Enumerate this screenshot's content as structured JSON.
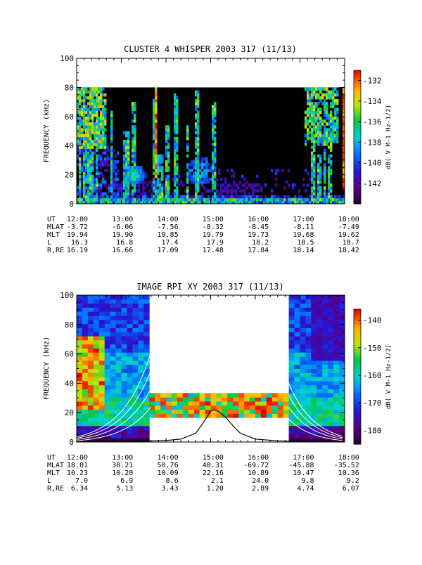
{
  "chart_data": [
    {
      "type": "heatmap",
      "title": "CLUSTER 4 WHISPER 2003 317 (11/13)",
      "xlabel": "",
      "ylabel": "FREQUENCY (kHz)",
      "xlim": [
        "12:00",
        "18:00"
      ],
      "ylim": [
        0,
        100
      ],
      "data_ylim": [
        0,
        80
      ],
      "x_ticks": [
        "12:00",
        "13:00",
        "14:00",
        "15:00",
        "16:00",
        "17:00",
        "18:00"
      ],
      "y_ticks": [
        "0",
        "20",
        "40",
        "60",
        "80",
        "100"
      ],
      "colorbar": {
        "label": "dB( V M-1 Hz-1/2)",
        "ticks": [
          "-132",
          "-134",
          "-136",
          "-138",
          "-140",
          "-142"
        ],
        "range": [
          -144,
          -131
        ]
      },
      "ephemeris": {
        "labels": [
          "UT",
          "MLAT",
          "MLT",
          "L",
          "R,RE"
        ],
        "rows": [
          [
            "12:00",
            "13:00",
            "14:00",
            "15:00",
            "16:00",
            "17:00",
            "18:00"
          ],
          [
            "-3.72",
            "-6.06",
            "-7.56",
            "-8.32",
            "-8.45",
            "-8.11",
            "-7.49"
          ],
          [
            "19.94",
            "19.90",
            "19.85",
            "19.79",
            "19.73",
            "19.68",
            "19.62"
          ],
          [
            "16.3",
            "16.8",
            "17.4",
            "17.9",
            "18.2",
            "18.5",
            "18.7"
          ],
          [
            "16.19",
            "16.66",
            "17.09",
            "17.48",
            "17.84",
            "18.14",
            "18.42"
          ]
        ]
      }
    },
    {
      "type": "heatmap",
      "title": "IMAGE RPI XY 2003 317 (11/13)",
      "xlabel": "",
      "ylabel": "FREQUENCY (kHz)",
      "xlim": [
        "12:00",
        "18:00"
      ],
      "ylim": [
        0,
        100
      ],
      "x_ticks": [
        "12:00",
        "13:00",
        "14:00",
        "15:00",
        "16:00",
        "17:00",
        "18:00"
      ],
      "y_ticks": [
        "0",
        "20",
        "40",
        "60",
        "80",
        "100"
      ],
      "colorbar": {
        "label": "dB( V M-1 Hz-1/2)",
        "ticks": [
          "-140",
          "-150",
          "-160",
          "-170",
          "-180"
        ],
        "range": [
          -185,
          -136
        ]
      },
      "plasma_frequency_curve": {
        "x": [
          "12:00",
          "12:30",
          "13:00",
          "13:30",
          "14:00",
          "14:20",
          "14:40",
          "14:50",
          "15:00",
          "15:05",
          "15:10",
          "15:20",
          "15:30",
          "15:40",
          "16:00",
          "16:30",
          "17:00",
          "17:30",
          "18:00"
        ],
        "y": [
          0.2,
          0.3,
          0.4,
          0.6,
          1,
          2,
          6,
          13,
          21,
          22,
          21,
          17,
          11,
          6,
          2,
          0.8,
          0.4,
          0.3,
          0.2
        ]
      },
      "ephemeris": {
        "labels": [
          "UT",
          "MLAT",
          "MLT",
          "L",
          "R,RE"
        ],
        "rows": [
          [
            "12:00",
            "13:00",
            "14:00",
            "15:00",
            "16:00",
            "17:00",
            "18:00"
          ],
          [
            "18.01",
            "30.21",
            "50.76",
            "40.31",
            "-69.72",
            "-45.88",
            "-35.52"
          ],
          [
            "10.23",
            "10.20",
            "10.09",
            "22.16",
            "10.89",
            "10.47",
            "10.36"
          ],
          [
            "7.0",
            "6.9",
            "8.6",
            "2.1",
            "24.0",
            "9.8",
            "9.2"
          ],
          [
            "6.34",
            "5.13",
            "3.43",
            "1.20",
            "2.89",
            "4.74",
            "6.07"
          ]
        ]
      }
    }
  ]
}
